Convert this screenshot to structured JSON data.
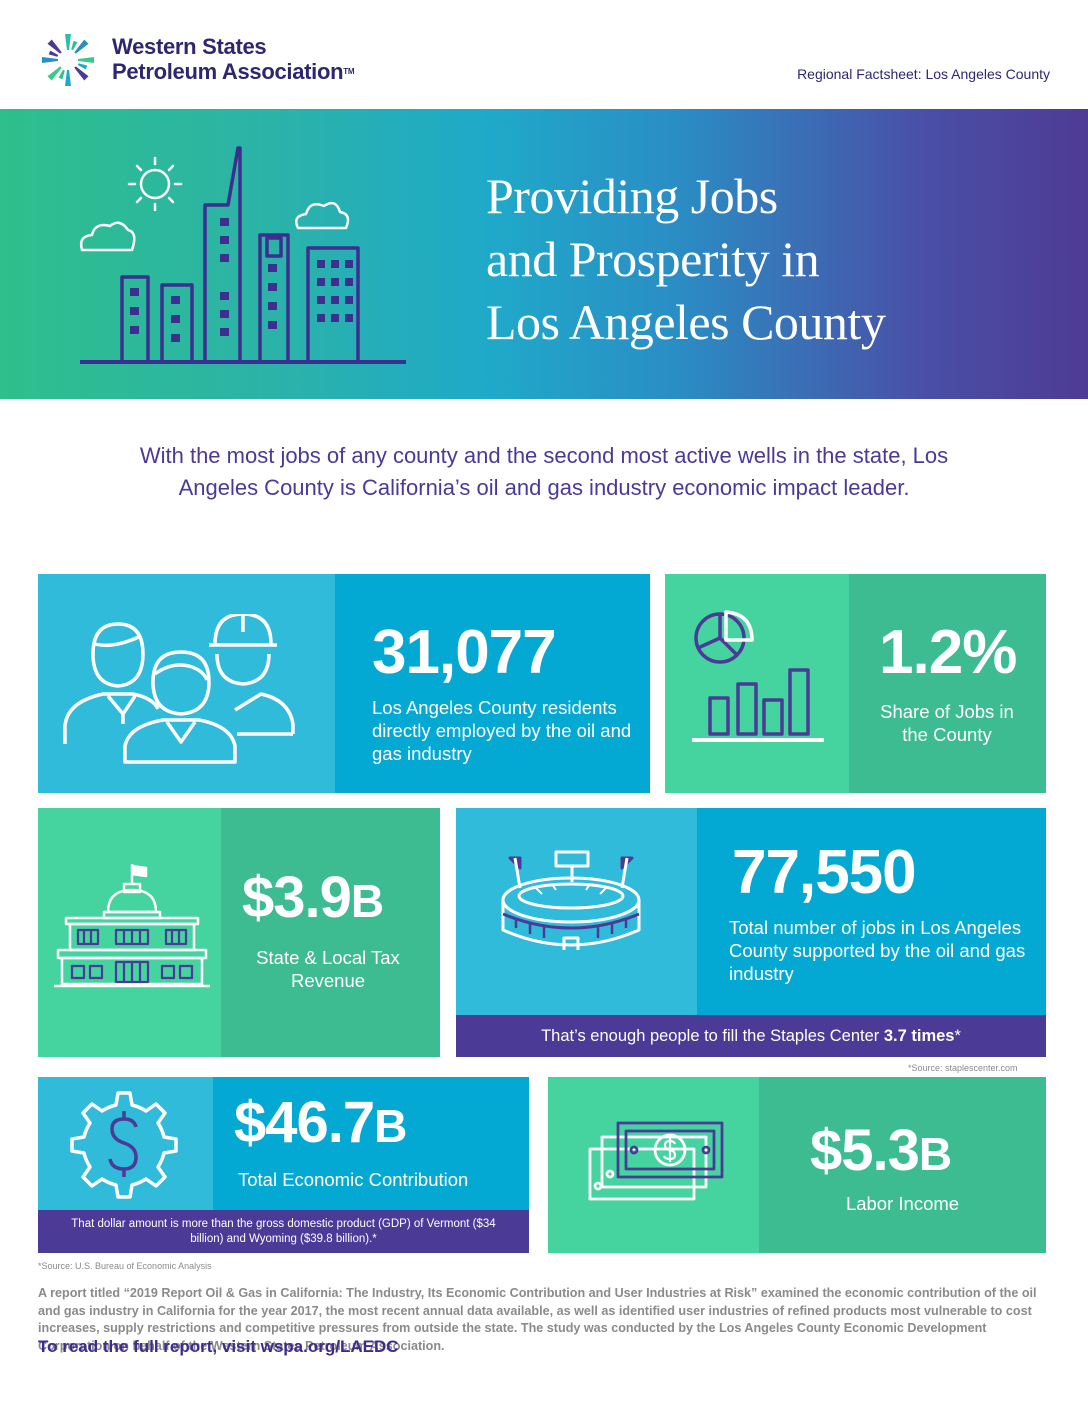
{
  "header": {
    "logo_line1": "Western States",
    "logo_line2": "Petroleum Association",
    "logo_tm": "TM",
    "factsheet": "Regional Factsheet: Los Angeles County"
  },
  "banner": {
    "title_line1": "Providing Jobs",
    "title_line2": "and Prosperity in",
    "title_line3": "Los Angeles County"
  },
  "intro": "With the most jobs of any county and the second most active wells in the state, Los Angeles County is California’s oil and gas industry economic impact leader.",
  "stats": {
    "employed": {
      "value": "31,077",
      "label": "Los Angeles County residents directly employed by the oil and gas industry"
    },
    "share": {
      "value": "1.2%",
      "label": "Share of Jobs in the County"
    },
    "tax": {
      "value": "$3.9",
      "suffix": "B",
      "label": "State & Local Tax Revenue"
    },
    "jobs_supported": {
      "value": "77,550",
      "label": "Total number of jobs in Los Angeles County supported by the oil and gas industry",
      "strip_text": "That’s enough people to fill the Staples Center ",
      "strip_bold": "3.7 times",
      "strip_star": "*",
      "source": "*Source: staplescenter.com"
    },
    "economic": {
      "value": "$46.7",
      "suffix": "B",
      "label": "Total Economic Contribution",
      "strip_text": "That dollar amount is more than the gross domestic product (GDP) of Vermont ($34 billion) and Wyoming ($39.8 billion).*",
      "source": "*Source: U.S. Bureau of Economic Analysis"
    },
    "labor": {
      "value": "$5.3",
      "suffix": "B",
      "label": "Labor Income"
    }
  },
  "footnote": "A report titled “2019 Report Oil & Gas in California: The Industry, Its Economic Contribution and User Industries at Risk” examined the economic contribution of the oil and gas industry in California for the year 2017, the most recent annual data available, as well as identified user industries of refined products most vulnerable to cost increases, supply restrictions and competitive pressures from outside the state. The study was conducted by the Los Angeles County Economic Development Corporation on behalf of the Western States Petroleum Association.",
  "cta": "To read the full report, visit wspa.org/LAEDC",
  "colors": {
    "teal": "#2fbbd9",
    "blue": "#04a9d3",
    "green_light": "#45d3a0",
    "green_dark": "#3dbc92",
    "purple": "#4b3a96"
  }
}
